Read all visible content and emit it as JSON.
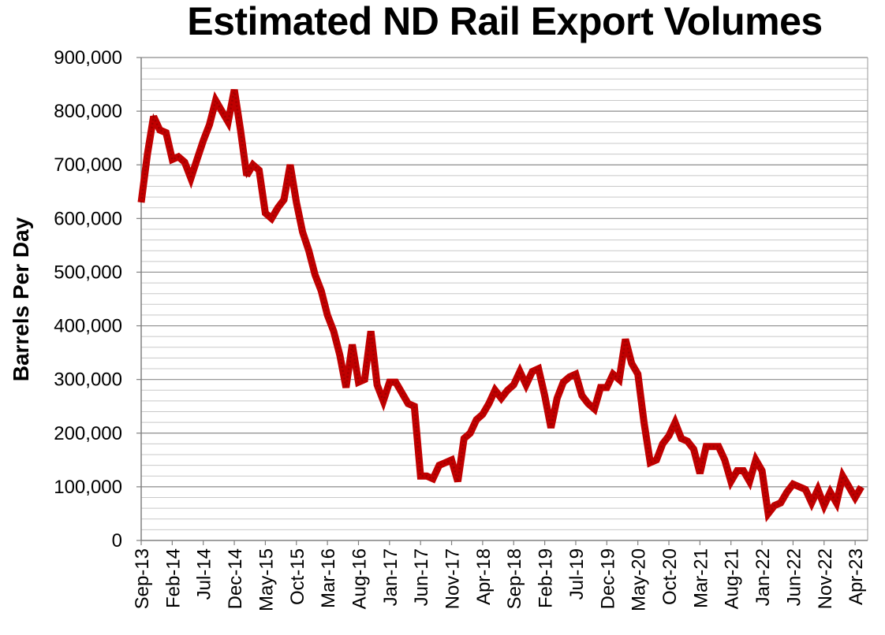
{
  "chart_data": {
    "type": "line",
    "title": "Estimated ND Rail Export Volumes",
    "xlabel": "",
    "ylabel": "Barrels Per Day",
    "ylim": [
      0,
      900000
    ],
    "yticks": [
      "0",
      "100,000",
      "200,000",
      "300,000",
      "400,000",
      "500,000",
      "600,000",
      "700,000",
      "800,000",
      "900,000"
    ],
    "grid": "horizontal",
    "line_color": "#C00000",
    "x_start": "Sep-13",
    "x_end": "Apr-23",
    "xtick_labels": [
      "Sep-13",
      "Feb-14",
      "Jul-14",
      "Dec-14",
      "May-15",
      "Oct-15",
      "Mar-16",
      "Aug-16",
      "Jan-17",
      "Jun-17",
      "Nov-17",
      "Apr-18",
      "Sep-18",
      "Feb-19",
      "Jul-19",
      "Dec-19",
      "May-20",
      "Oct-20",
      "Mar-21",
      "Aug-21",
      "Jan-22",
      "Jun-22",
      "Nov-22",
      "Apr-23"
    ],
    "series": [
      {
        "values": [
          630000,
          720000,
          790000,
          765000,
          760000,
          710000,
          715000,
          705000,
          675000,
          710000,
          745000,
          775000,
          820000,
          800000,
          780000,
          840000,
          765000,
          680000,
          700000,
          690000,
          610000,
          600000,
          620000,
          635000,
          700000,
          630000,
          575000,
          540000,
          495000,
          465000,
          420000,
          390000,
          345000,
          285000,
          365000,
          295000,
          300000,
          390000,
          290000,
          260000,
          295000,
          295000,
          275000,
          255000,
          250000,
          120000,
          120000,
          115000,
          140000,
          145000,
          150000,
          110000,
          190000,
          200000,
          225000,
          235000,
          255000,
          280000,
          265000,
          280000,
          290000,
          315000,
          290000,
          315000,
          320000,
          270000,
          210000,
          265000,
          295000,
          305000,
          310000,
          270000,
          255000,
          245000,
          285000,
          285000,
          310000,
          300000,
          375000,
          330000,
          310000,
          220000,
          145000,
          150000,
          180000,
          195000,
          220000,
          190000,
          185000,
          170000,
          125000,
          175000,
          175000,
          175000,
          150000,
          110000,
          130000,
          130000,
          110000,
          150000,
          130000,
          50000,
          65000,
          70000,
          90000,
          105000,
          100000,
          95000,
          70000,
          95000,
          65000,
          90000,
          70000,
          120000,
          100000,
          80000,
          100000
        ]
      }
    ]
  }
}
